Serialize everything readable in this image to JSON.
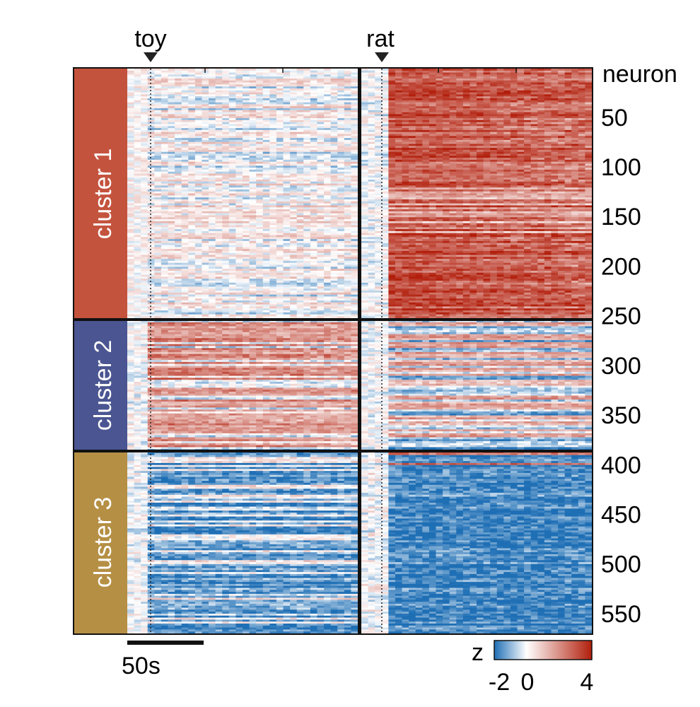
{
  "chart_data": {
    "type": "heatmap",
    "title": "",
    "panels": [
      {
        "name": "toy",
        "stimulus_label": "toy"
      },
      {
        "name": "rat",
        "stimulus_label": "rat"
      }
    ],
    "y_axis": {
      "label": "neuron",
      "ticks": [
        50,
        100,
        150,
        200,
        250,
        300,
        350,
        400,
        450,
        500,
        550
      ],
      "range": [
        1,
        570
      ]
    },
    "clusters": [
      {
        "name": "cluster 1",
        "start": 1,
        "end": 251,
        "color": "#c4533e"
      },
      {
        "name": "cluster 2",
        "start": 252,
        "end": 382,
        "color": "#4a5591"
      },
      {
        "name": "cluster 3",
        "start": 383,
        "end": 570,
        "color": "#b58f44"
      }
    ],
    "scale_bar": {
      "label": "50s",
      "seconds": 50
    },
    "colorbar": {
      "label": "z",
      "ticks": [
        "-2",
        "0",
        "4"
      ],
      "range": [
        -2,
        4
      ],
      "colors": [
        "#1f6fb5",
        "#ffffff",
        "#b21f0c"
      ]
    }
  }
}
